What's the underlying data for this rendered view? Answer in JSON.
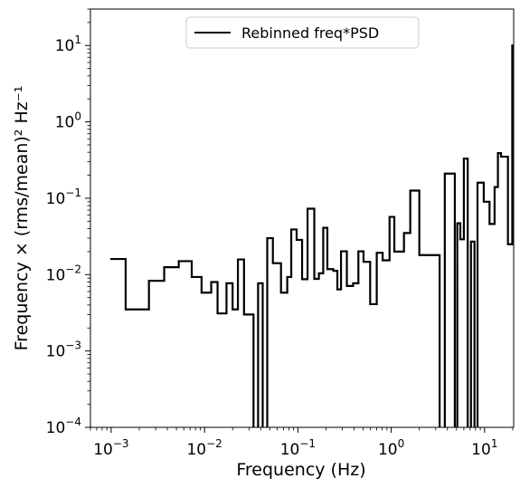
{
  "chart_data": {
    "type": "line",
    "drawstyle": "steps-post",
    "title": "",
    "xlabel": "Frequency (Hz)",
    "ylabel": "Frequency × (rms/mean)² Hz⁻¹",
    "xscale": "log",
    "yscale": "log",
    "xlim": [
      0.0006,
      20.5
    ],
    "ylim": [
      0.0001,
      30
    ],
    "grid": false,
    "legend_location": "upper center",
    "x_ticks": [
      {
        "value": 0.001,
        "base": "10",
        "exp": "−3"
      },
      {
        "value": 0.01,
        "base": "10",
        "exp": "−2"
      },
      {
        "value": 0.1,
        "base": "10",
        "exp": "−1"
      },
      {
        "value": 1,
        "base": "10",
        "exp": "0"
      },
      {
        "value": 10,
        "base": "10",
        "exp": "1"
      }
    ],
    "y_ticks": [
      {
        "value": 0.0001,
        "base": "10",
        "exp": "−4"
      },
      {
        "value": 0.001,
        "base": "10",
        "exp": "−3"
      },
      {
        "value": 0.01,
        "base": "10",
        "exp": "−2"
      },
      {
        "value": 0.1,
        "base": "10",
        "exp": "−1"
      },
      {
        "value": 1,
        "base": "10",
        "exp": "0"
      },
      {
        "value": 10,
        "base": "10",
        "exp": "1"
      }
    ],
    "series": [
      {
        "name": "Rebinned freq*PSD",
        "color": "#000000",
        "x": [
          0.00098,
          0.00143,
          0.00254,
          0.0037,
          0.0053,
          0.0073,
          0.0093,
          0.0118,
          0.0138,
          0.0172,
          0.02,
          0.0228,
          0.0265,
          0.0335,
          0.0375,
          0.042,
          0.047,
          0.054,
          0.066,
          0.077,
          0.085,
          0.097,
          0.111,
          0.127,
          0.15,
          0.168,
          0.187,
          0.207,
          0.24,
          0.265,
          0.29,
          0.335,
          0.39,
          0.445,
          0.505,
          0.595,
          0.7,
          0.81,
          0.96,
          1.08,
          1.37,
          1.6,
          2.0,
          3.3,
          3.75,
          4.8,
          5.1,
          5.5,
          6.0,
          6.6,
          7.15,
          7.8,
          8.4,
          9.8,
          11.3,
          12.8,
          13.9,
          15.0,
          17.8,
          19.8,
          20.5
        ],
        "y": [
          0.016,
          0.0035,
          0.0083,
          0.0125,
          0.015,
          0.0093,
          0.0058,
          0.008,
          0.0031,
          0.0077,
          0.0035,
          0.0158,
          0.003,
          8e-05,
          0.0077,
          8e-05,
          0.03,
          0.0141,
          0.0058,
          0.0093,
          0.039,
          0.0285,
          0.0087,
          0.073,
          0.0088,
          0.0104,
          0.041,
          0.0118,
          0.0112,
          0.0064,
          0.0202,
          0.0071,
          0.0077,
          0.0202,
          0.0147,
          0.0041,
          0.0193,
          0.0154,
          0.057,
          0.02,
          0.035,
          0.126,
          0.018,
          8e-05,
          0.21,
          8e-05,
          0.047,
          0.029,
          0.33,
          8e-05,
          0.027,
          8e-05,
          0.16,
          0.09,
          0.046,
          0.14,
          0.39,
          0.35,
          0.025,
          10.0,
          10.0
        ]
      }
    ]
  }
}
